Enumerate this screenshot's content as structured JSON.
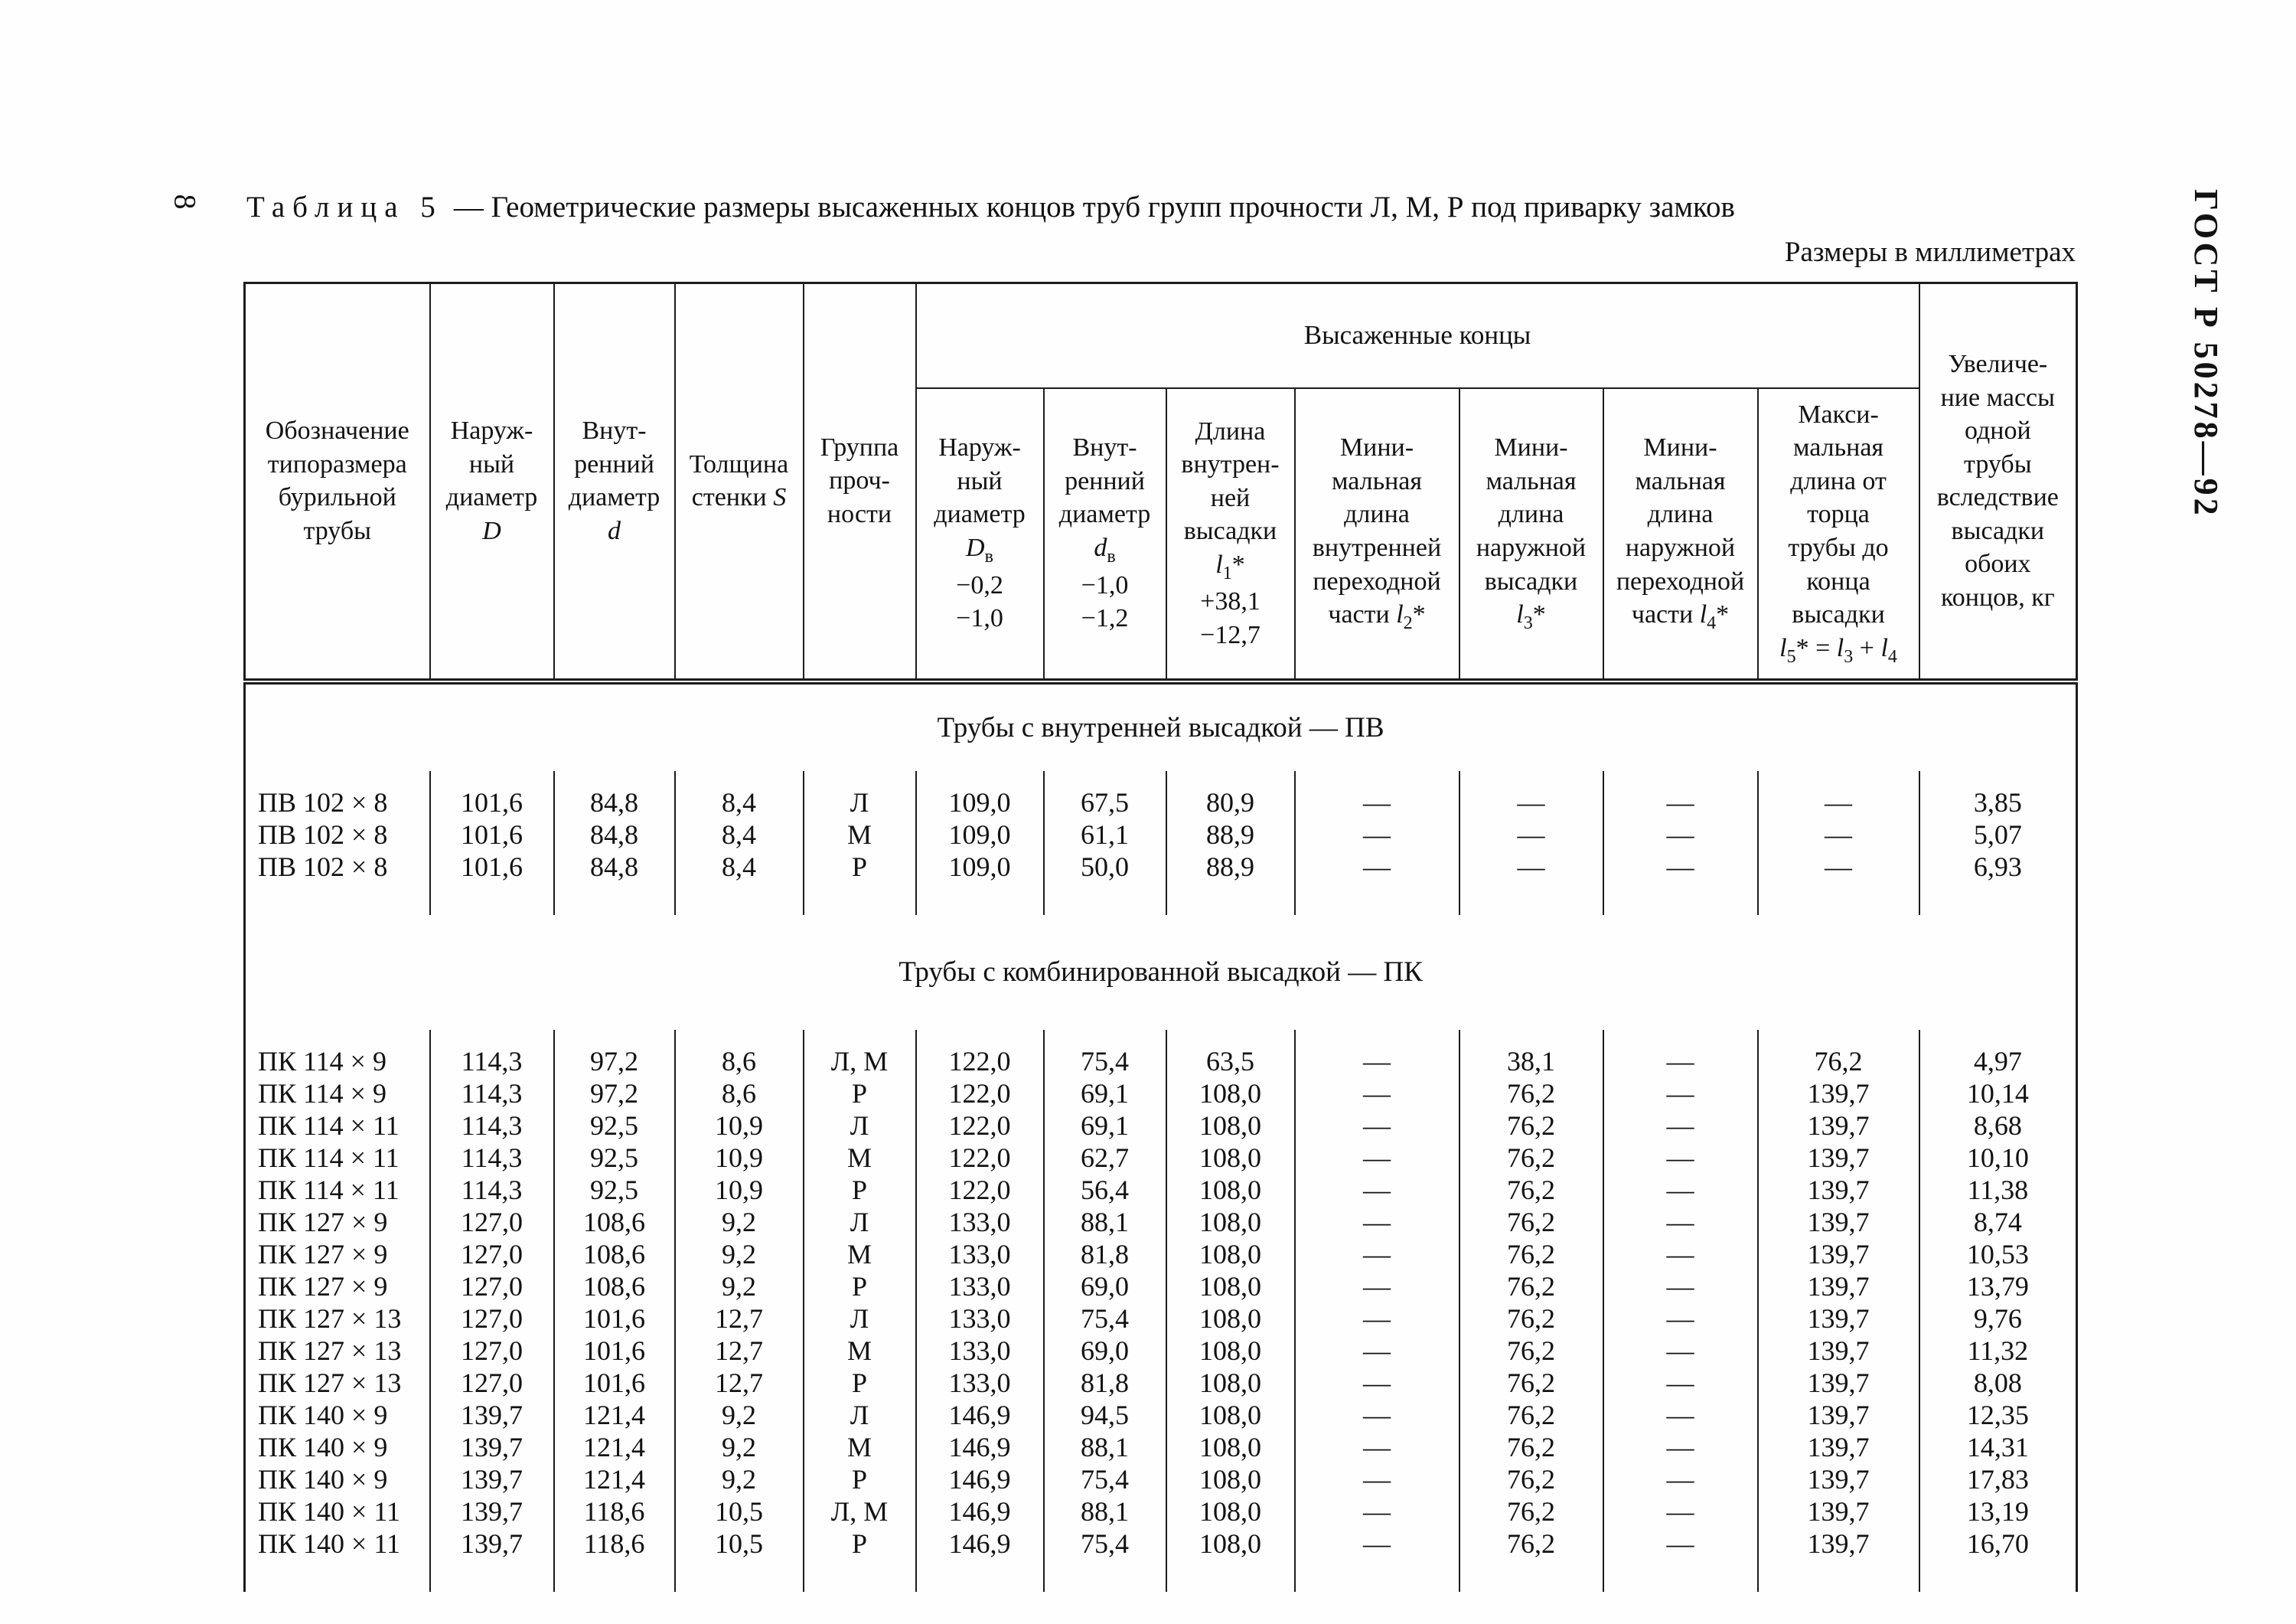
{
  "page": {
    "page_number": "8",
    "table_label": "Таблица 5",
    "table_title_rest": "— Геометрические размеры высаженных концов труб групп прочности Л, М, Р под приварку замков",
    "units_note": "Размеры в миллиметрах",
    "doc_code": "ГОСТ Р 50278—92"
  },
  "table": {
    "header": {
      "group_label": "Высаженные концы",
      "col1_html": "Обозначение<br>типоразмера<br>бурильной<br>трубы",
      "col2_html": "Наруж-<br>ный<br>диаметр<br><i>D</i>",
      "col3_html": "Внут-<br>ренний<br>диаметр<br><i>d</i>",
      "col4_html": "Толщина<br>стенки <i>S</i>",
      "col5_html": "Группа<br>проч-<br>ности",
      "col6_html": "Наруж-<br>ный<br>диаметр<br><i>D</i><sub>в</sub><br>−0,2<br>−1,0",
      "col7_html": "Внут-<br>ренний<br>диаметр<br><i>d</i><sub>в</sub><br>−1,0<br>−1,2",
      "col8_html": "Длина<br>внутрен-<br>ней<br>высадки<br><i>l</i><sub>1</sub>*<br>+38,1<br>−12,7",
      "col9_html": "Мини-<br>мальная<br>длина<br>внутренней<br>переходной<br>части <i>l</i><sub>2</sub>*",
      "col10_html": "Мини-<br>мальная<br>длина<br>наружной<br>высадки<br><i>l</i><sub>3</sub>*",
      "col11_html": "Мини-<br>мальная<br>длина<br>наружной<br>переходной<br>части <i>l</i><sub>4</sub>*",
      "col12_html": "Макси-<br>мальная<br>длина от<br>торца<br>трубы до<br>конца<br>высадки<br><i>l</i><sub>5</sub>* = <i>l</i><sub>3</sub> + <i>l</i><sub>4</sub>",
      "col13_html": "Увеличе-<br>ние массы<br>одной<br>трубы<br>вследствие<br>высадки<br>обоих<br>концов, кг"
    },
    "sections": [
      {
        "title": "Трубы с внутренней высадкой — ПВ",
        "rows": [
          [
            "ПВ 102 × 8",
            "101,6",
            "84,8",
            "8,4",
            "Л",
            "109,0",
            "67,5",
            "80,9",
            "—",
            "—",
            "—",
            "—",
            "3,85"
          ],
          [
            "ПВ 102 × 8",
            "101,6",
            "84,8",
            "8,4",
            "М",
            "109,0",
            "61,1",
            "88,9",
            "—",
            "—",
            "—",
            "—",
            "5,07"
          ],
          [
            "ПВ 102 × 8",
            "101,6",
            "84,8",
            "8,4",
            "Р",
            "109,0",
            "50,0",
            "88,9",
            "—",
            "—",
            "—",
            "—",
            "6,93"
          ]
        ]
      },
      {
        "title": "Трубы с комбинированной высадкой — ПК",
        "rows": [
          [
            "ПК 114 × 9",
            "114,3",
            "97,2",
            "8,6",
            "Л, М",
            "122,0",
            "75,4",
            "63,5",
            "—",
            "38,1",
            "—",
            "76,2",
            "4,97"
          ],
          [
            "ПК 114 × 9",
            "114,3",
            "97,2",
            "8,6",
            "Р",
            "122,0",
            "69,1",
            "108,0",
            "—",
            "76,2",
            "—",
            "139,7",
            "10,14"
          ],
          [
            "ПК 114 × 11",
            "114,3",
            "92,5",
            "10,9",
            "Л",
            "122,0",
            "69,1",
            "108,0",
            "—",
            "76,2",
            "—",
            "139,7",
            "8,68"
          ],
          [
            "ПК 114 × 11",
            "114,3",
            "92,5",
            "10,9",
            "М",
            "122,0",
            "62,7",
            "108,0",
            "—",
            "76,2",
            "—",
            "139,7",
            "10,10"
          ],
          [
            "ПК 114 × 11",
            "114,3",
            "92,5",
            "10,9",
            "Р",
            "122,0",
            "56,4",
            "108,0",
            "—",
            "76,2",
            "—",
            "139,7",
            "11,38"
          ],
          [
            "ПК 127 × 9",
            "127,0",
            "108,6",
            "9,2",
            "Л",
            "133,0",
            "88,1",
            "108,0",
            "—",
            "76,2",
            "—",
            "139,7",
            "8,74"
          ],
          [
            "ПК 127 × 9",
            "127,0",
            "108,6",
            "9,2",
            "М",
            "133,0",
            "81,8",
            "108,0",
            "—",
            "76,2",
            "—",
            "139,7",
            "10,53"
          ],
          [
            "ПК 127 × 9",
            "127,0",
            "108,6",
            "9,2",
            "Р",
            "133,0",
            "69,0",
            "108,0",
            "—",
            "76,2",
            "—",
            "139,7",
            "13,79"
          ],
          [
            "ПК 127 × 13",
            "127,0",
            "101,6",
            "12,7",
            "Л",
            "133,0",
            "75,4",
            "108,0",
            "—",
            "76,2",
            "—",
            "139,7",
            "9,76"
          ],
          [
            "ПК 127 × 13",
            "127,0",
            "101,6",
            "12,7",
            "М",
            "133,0",
            "69,0",
            "108,0",
            "—",
            "76,2",
            "—",
            "139,7",
            "11,32"
          ],
          [
            "ПК 127 × 13",
            "127,0",
            "101,6",
            "12,7",
            "Р",
            "133,0",
            "81,8",
            "108,0",
            "—",
            "76,2",
            "—",
            "139,7",
            "8,08"
          ],
          [
            "ПК 140 × 9",
            "139,7",
            "121,4",
            "9,2",
            "Л",
            "146,9",
            "94,5",
            "108,0",
            "—",
            "76,2",
            "—",
            "139,7",
            "12,35"
          ],
          [
            "ПК 140 × 9",
            "139,7",
            "121,4",
            "9,2",
            "М",
            "146,9",
            "88,1",
            "108,0",
            "—",
            "76,2",
            "—",
            "139,7",
            "14,31"
          ],
          [
            "ПК 140 × 9",
            "139,7",
            "121,4",
            "9,2",
            "Р",
            "146,9",
            "75,4",
            "108,0",
            "—",
            "76,2",
            "—",
            "139,7",
            "17,83"
          ],
          [
            "ПК 140 × 11",
            "139,7",
            "118,6",
            "10,5",
            "Л, М",
            "146,9",
            "88,1",
            "108,0",
            "—",
            "76,2",
            "—",
            "139,7",
            "13,19"
          ],
          [
            "ПК 140 × 11",
            "139,7",
            "118,6",
            "10,5",
            "Р",
            "146,9",
            "75,4",
            "108,0",
            "—",
            "76,2",
            "—",
            "139,7",
            "16,70"
          ]
        ]
      }
    ]
  }
}
